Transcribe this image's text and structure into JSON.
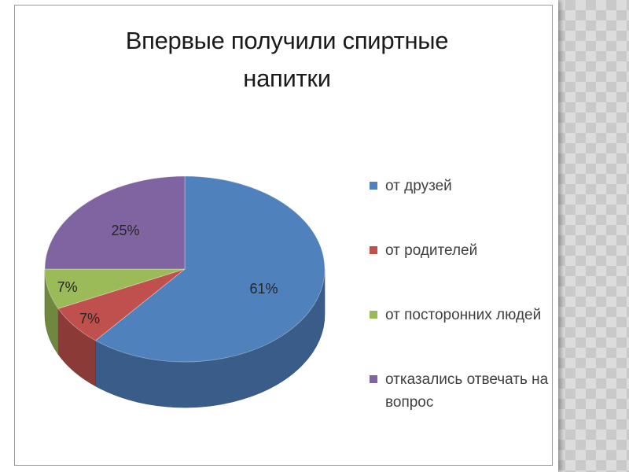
{
  "chart_data": {
    "type": "pie",
    "title": "Впервые получили спиртные напитки",
    "title_lines": [
      "Впервые получили спиртные",
      "напитки"
    ],
    "categories": [
      "от друзей",
      "от родителей",
      "от посторонних людей",
      "отказались отвечать на вопрос"
    ],
    "values": [
      61,
      7,
      7,
      25
    ],
    "labels": [
      "61%",
      "7%",
      "7%",
      "25%"
    ],
    "colors": [
      "#4f81bd",
      "#c0504d",
      "#9bbb59",
      "#8064a2"
    ],
    "legend_position": "right",
    "style": "3d"
  }
}
